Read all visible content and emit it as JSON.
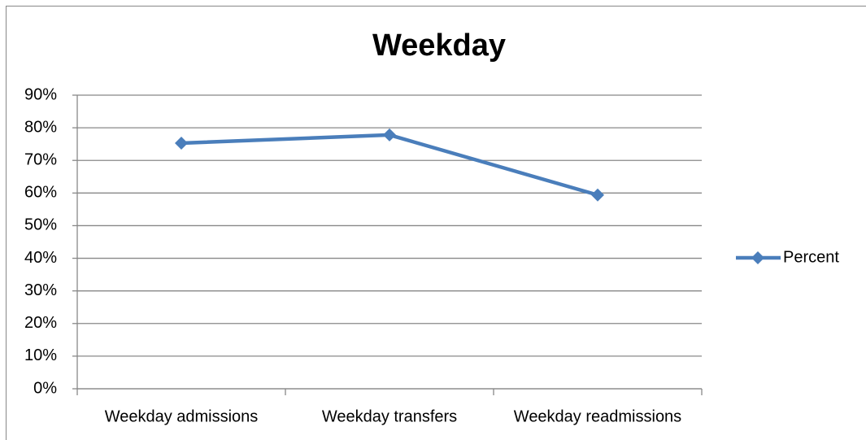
{
  "chart_data": {
    "type": "line",
    "title": "Weekday",
    "categories": [
      "Weekday admissions",
      "Weekday transfers",
      "Weekday readmissions"
    ],
    "series": [
      {
        "name": "Percent",
        "color": "#4a7ebb",
        "values": [
          75.3,
          77.8,
          59.4
        ]
      }
    ],
    "ylim": [
      0,
      90
    ],
    "yticks": [
      {
        "value": 0,
        "label": "0%"
      },
      {
        "value": 10,
        "label": "10%"
      },
      {
        "value": 20,
        "label": "20%"
      },
      {
        "value": 30,
        "label": "30%"
      },
      {
        "value": 40,
        "label": "40%"
      },
      {
        "value": 50,
        "label": "50%"
      },
      {
        "value": 60,
        "label": "60%"
      },
      {
        "value": 70,
        "label": "70%"
      },
      {
        "value": 80,
        "label": "80%"
      },
      {
        "value": 90,
        "label": "90%"
      }
    ],
    "grid": true,
    "legend": "right"
  }
}
